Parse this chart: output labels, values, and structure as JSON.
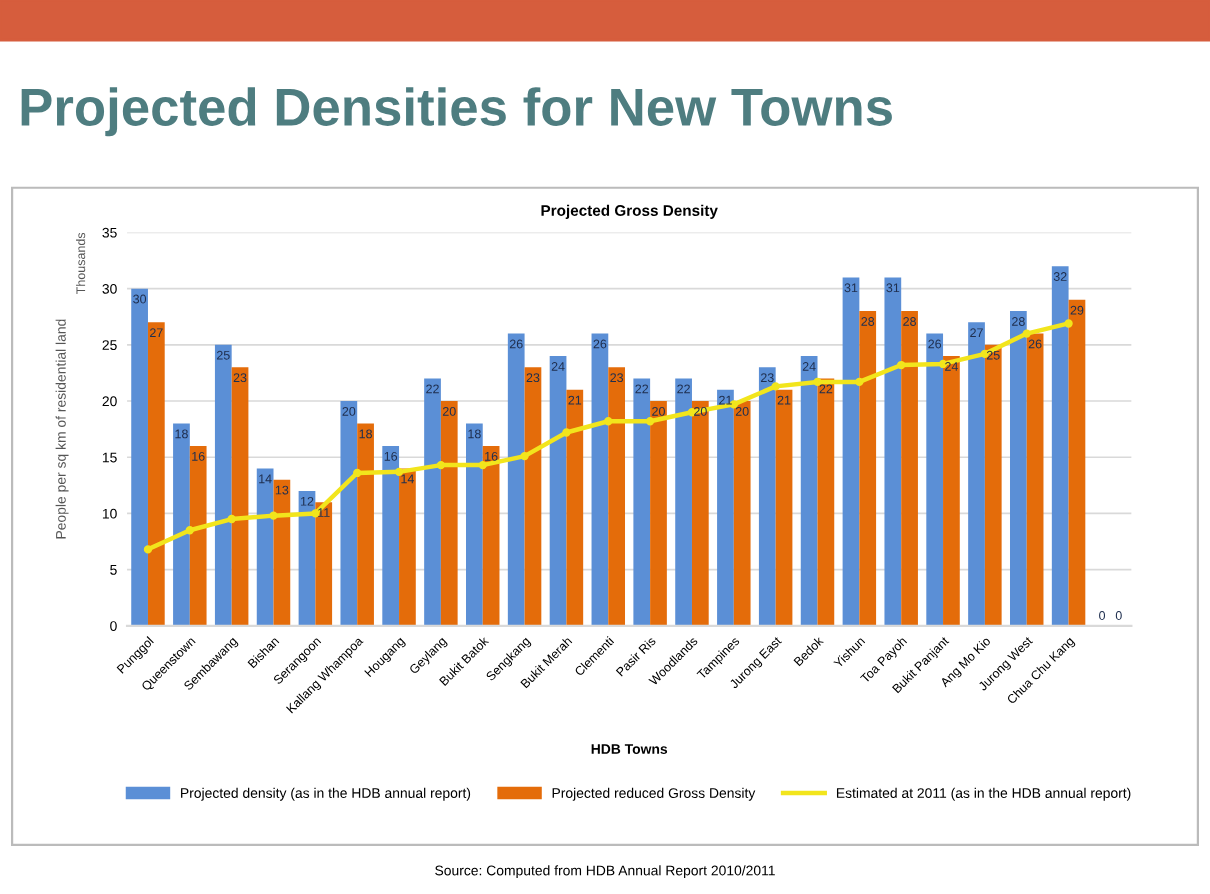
{
  "chart_data": {
    "type": "bar",
    "title": "Projected Densities for New Towns",
    "subtitle": "Projected Gross Density",
    "xlabel": "HDB Towns",
    "ylabel": "People per sq km of residential land",
    "annotations": [
      "Thousands",
      "Source: Computed from HDB Annual Report 2010/2011"
    ],
    "categories": [
      "Punggol",
      "Queenstown",
      "Sembawang",
      "Bishan",
      "Serangoon",
      "Kallang Whampoa",
      "Hougang",
      "Geylang",
      "Bukit Batok",
      "Sengkang",
      "Bukit Merah",
      "Clementi",
      "Pasir Ris",
      "Woodlands",
      "Tampines",
      "Jurong East",
      "Bedok",
      "Yishun",
      "Toa Payoh",
      "Bukit Panjant",
      "Ang Mo Kio",
      "Jurong West",
      "Chua Chu Kang",
      null
    ],
    "series": [
      {
        "name": "Projected density (as in the HDB annual report)",
        "color": "#5b8fd6",
        "values": [
          30,
          18,
          25,
          14,
          12,
          20,
          16,
          22,
          18,
          26,
          24,
          26,
          22,
          22,
          21,
          23,
          24,
          31,
          31,
          26,
          27,
          28,
          32,
          0
        ],
        "value_labels": [
          "30",
          "18",
          "25",
          "14",
          "12",
          "20",
          "16",
          "22",
          "18",
          "26",
          "24",
          "26",
          "22",
          "22",
          "21",
          "23",
          "24",
          "31",
          "31",
          "26",
          "27",
          "28",
          "32",
          "0"
        ]
      },
      {
        "name": "Projected reduced Gross Density",
        "color": "#e46c0a",
        "values": [
          27,
          16,
          23,
          13,
          11,
          18,
          14,
          20,
          16,
          23,
          21,
          23,
          20,
          20,
          20,
          21,
          22,
          28,
          28,
          24,
          25,
          26,
          29,
          0
        ],
        "value_labels": [
          "27",
          "16",
          "23",
          "13",
          "11",
          "18",
          "14",
          "20",
          "16",
          "23",
          "21",
          "23",
          "20",
          "20",
          "20",
          "21",
          "22",
          "28",
          "28",
          "24",
          "25",
          "26",
          "29",
          "0"
        ]
      },
      {
        "name": "Estimated at 2011 (as in the HDB annual report)",
        "color": "#f2e51c",
        "type": "line",
        "marker": "circle",
        "values": [
          6.8,
          8.5,
          9.5,
          9.8,
          10.0,
          13.6,
          13.7,
          14.3,
          14.3,
          15.1,
          17.2,
          18.2,
          18.2,
          19.0,
          19.7,
          21.3,
          21.7,
          21.7,
          23.2,
          23.3,
          24.2,
          26.0,
          26.9,
          null
        ]
      }
    ],
    "ylim": [
      0,
      35
    ],
    "yticks": [
      0,
      5,
      10,
      15,
      20,
      25,
      30,
      35
    ],
    "grid": "y",
    "legend": "bottom"
  }
}
